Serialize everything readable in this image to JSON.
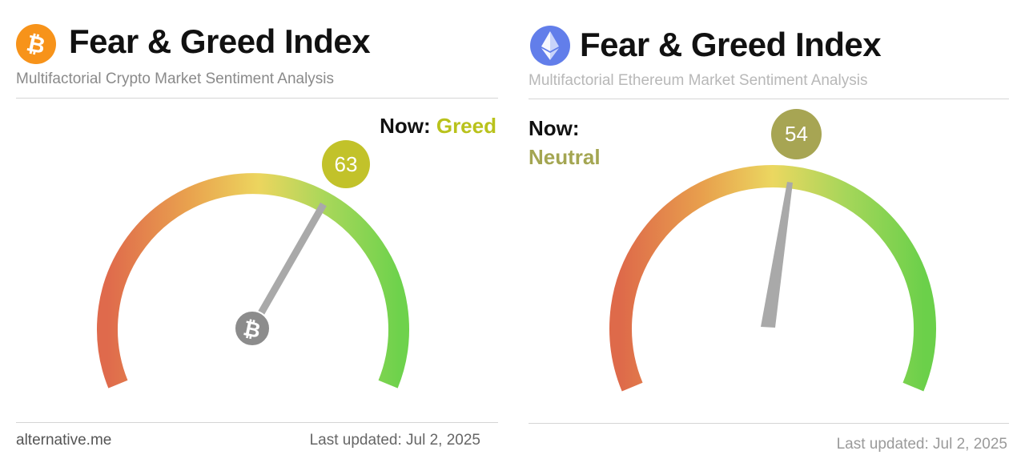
{
  "colors": {
    "bitcoin_orange": "#f7931a",
    "ethereum_blue": "#627eea",
    "greed": "#b9c21c",
    "neutral": "#a4a652",
    "btc_badge": "#c2c22a",
    "eth_badge": "#a7a553",
    "needle": "#a9a9a9"
  },
  "btc": {
    "icon": "bitcoin-icon",
    "title": "Fear & Greed Index",
    "subtitle": "Multifactorial Crypto Market Sentiment Analysis",
    "now_label": "Now:",
    "now_value": "Greed",
    "index_value": 63,
    "index_text": "63",
    "hub_icon": "bitcoin-icon",
    "footer_left": "alternative.me",
    "footer_right": "Last updated: Jul 2, 2025"
  },
  "eth": {
    "icon": "ethereum-icon",
    "title": "Fear & Greed Index",
    "subtitle": "Multifactorial Ethereum Market Sentiment Analysis",
    "now_label": "Now:",
    "now_value": "Neutral",
    "index_value": 54,
    "index_text": "54",
    "footer_right": "Last updated: Jul 2, 2025"
  }
}
